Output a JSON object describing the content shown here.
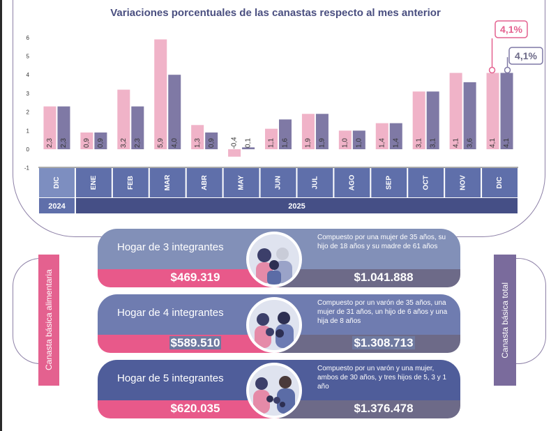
{
  "chart_data": {
    "type": "bar",
    "title": "Variaciones porcentuales de las canastas respecto al mes anterior",
    "categories": [
      "DIC",
      "ENE",
      "FEB",
      "MAR",
      "ABR",
      "MAY",
      "JUN",
      "JUL",
      "AGO",
      "SEP",
      "OCT",
      "NOV",
      "DIC"
    ],
    "years": [
      {
        "label": "2024",
        "span": 1
      },
      {
        "label": "2025",
        "span": 12
      }
    ],
    "series": [
      {
        "name": "Canasta básica alimentaria",
        "color": "#f0b3c8",
        "values": [
          2.3,
          0.9,
          3.2,
          5.9,
          1.3,
          -0.4,
          1.1,
          1.9,
          1.0,
          1.4,
          3.1,
          4.1,
          4.1
        ],
        "labels": [
          "2,3",
          "0,9",
          "3,2",
          "5,9",
          "1,3",
          "-0,4",
          "1,1",
          "1,9",
          "1,0",
          "1,4",
          "3,1",
          "4,1",
          "4,1"
        ]
      },
      {
        "name": "Canasta básica total",
        "color": "#7f79a5",
        "values": [
          2.3,
          0.9,
          2.3,
          4.0,
          0.9,
          0.1,
          1.6,
          1.9,
          1.0,
          1.4,
          3.1,
          3.6,
          4.1
        ],
        "labels": [
          "2,3",
          "0,9",
          "2,3",
          "4,0",
          "0,9",
          "0,1",
          "1,6",
          "1,9",
          "1,0",
          "1,4",
          "3,1",
          "3,6",
          "4,1"
        ]
      }
    ],
    "ylim": [
      -1,
      6
    ],
    "yticks": [
      "-1",
      "0",
      "1",
      "2",
      "3",
      "4",
      "5",
      "6"
    ],
    "callouts": [
      "4,1%",
      "4,1%"
    ],
    "grid": false
  },
  "side_labels": {
    "left": "Canasta básica alimentaria",
    "right": "Canasta básica total"
  },
  "households": [
    {
      "name": "Hogar de 3 integrantes",
      "description": "Compuesto por una mujer de 35 años, su hijo de 18 años y su madre de 61 años",
      "cba": "$469.319",
      "cbt": "$1.041.888",
      "top_color": "#8290b8"
    },
    {
      "name": "Hogar de 4 integrantes",
      "description": "Compuesto por un varón de 35 años, una mujer de 31 años, un hijo de 6 años y una hija de 8 años",
      "cba": "$589.510",
      "cbt": "$1.308.713",
      "top_color": "#6f7cb0"
    },
    {
      "name": "Hogar de 5 integrantes",
      "description": "Compuesto por un varón y una mujer, ambos de 30 años, y tres hijos de 5, 3 y 1 año",
      "cba": "$620.035",
      "cbt": "$1.376.478",
      "top_color": "#4f5d9a"
    }
  ]
}
